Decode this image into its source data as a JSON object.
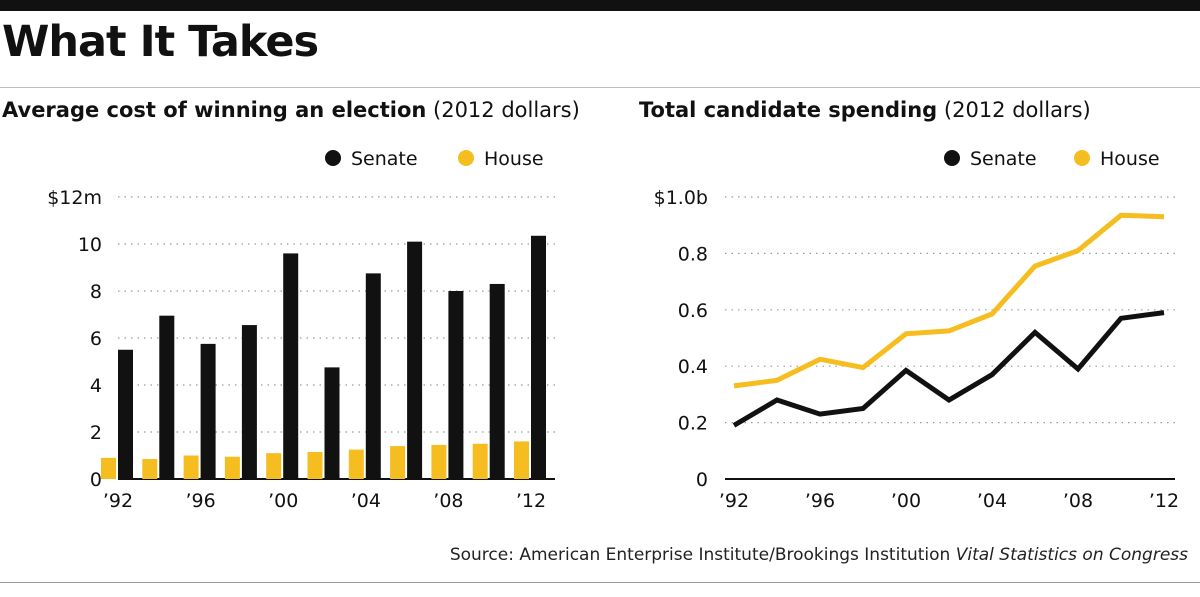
{
  "title": "What It Takes",
  "source": {
    "text": "Source: American Enterprise Institute/Brookings Institution",
    "publication": "Vital Statistics on Congress"
  },
  "colors": {
    "senate": "#111111",
    "house": "#f5bd1f",
    "grid": "#9a9a9a"
  },
  "chart_data": [
    {
      "type": "bar",
      "title": "Average cost of winning an election",
      "unit_note": "(2012 dollars)",
      "legend_position": "top-right",
      "categories": [
        "1992",
        "1994",
        "1996",
        "1998",
        "2000",
        "2002",
        "2004",
        "2006",
        "2008",
        "2010",
        "2012"
      ],
      "x_tick_labels": [
        "’92",
        "",
        "’96",
        "",
        "’00",
        "",
        "’04",
        "",
        "’08",
        "",
        "’12"
      ],
      "y_tick_values": [
        0,
        2,
        4,
        6,
        8,
        10,
        12
      ],
      "y_tick_labels": [
        "0",
        "2",
        "4",
        "6",
        "8",
        "10",
        "$12m"
      ],
      "ylim": [
        0,
        12
      ],
      "grid": true,
      "series": [
        {
          "name": "Senate",
          "color": "#111111",
          "values": [
            5.5,
            6.95,
            5.75,
            6.55,
            9.6,
            4.75,
            8.75,
            10.1,
            8.0,
            8.3,
            10.35
          ]
        },
        {
          "name": "House",
          "color": "#f5bd1f",
          "values": [
            0.9,
            0.85,
            1.0,
            0.95,
            1.1,
            1.15,
            1.25,
            1.4,
            1.45,
            1.5,
            1.6
          ]
        }
      ]
    },
    {
      "type": "line",
      "title": "Total candidate spending",
      "unit_note": "(2012 dollars)",
      "legend_position": "top-right",
      "x": [
        1992,
        1994,
        1996,
        1998,
        2000,
        2002,
        2004,
        2006,
        2008,
        2010,
        2012
      ],
      "x_tick_labels": [
        "’92",
        "",
        "’96",
        "",
        "’00",
        "",
        "’04",
        "",
        "’08",
        "",
        "’12"
      ],
      "y_tick_values": [
        0,
        0.2,
        0.4,
        0.6,
        0.8,
        1.0
      ],
      "y_tick_labels": [
        "0",
        "0.2",
        "0.4",
        "0.6",
        "0.8",
        "$1.0b"
      ],
      "ylim": [
        0,
        1.0
      ],
      "grid": true,
      "series": [
        {
          "name": "Senate",
          "color": "#111111",
          "values": [
            0.19,
            0.28,
            0.23,
            0.25,
            0.385,
            0.28,
            0.37,
            0.52,
            0.39,
            0.57,
            0.59
          ]
        },
        {
          "name": "House",
          "color": "#f5bd1f",
          "values": [
            0.33,
            0.35,
            0.425,
            0.395,
            0.515,
            0.525,
            0.585,
            0.755,
            0.81,
            0.935,
            0.93
          ]
        }
      ]
    }
  ]
}
